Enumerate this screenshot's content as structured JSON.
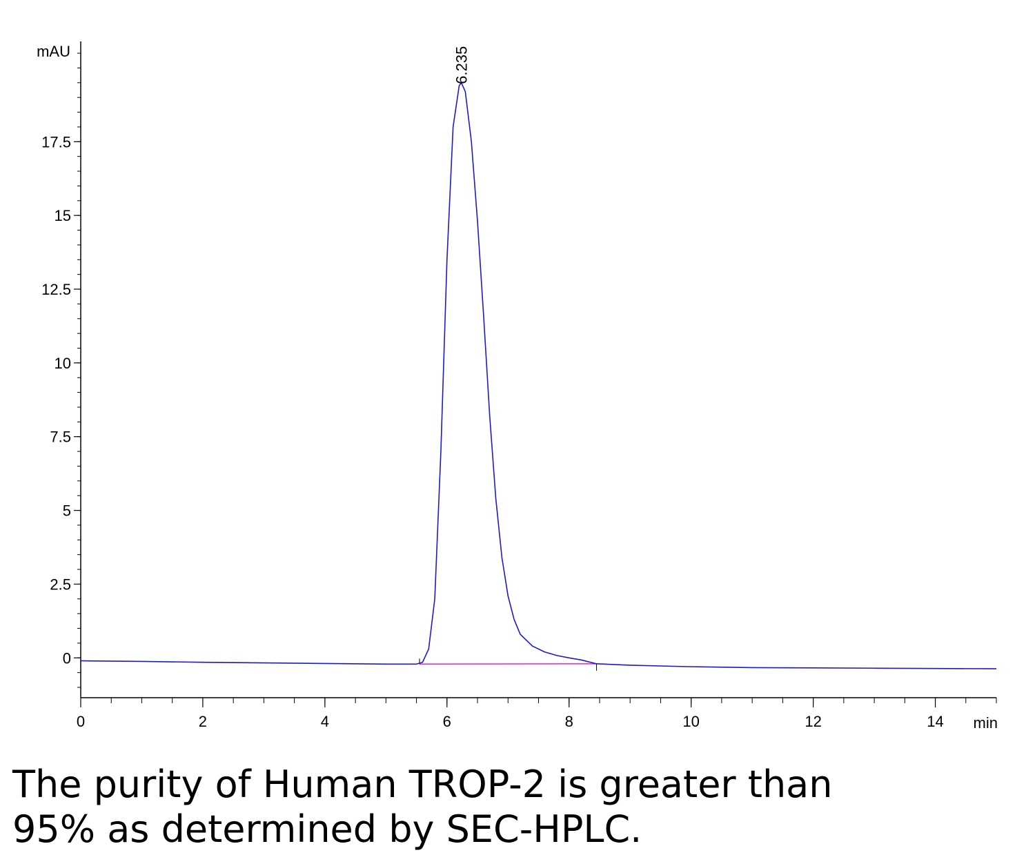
{
  "chart_data": {
    "type": "line",
    "title": "",
    "xlabel": "min",
    "ylabel": "mAU",
    "xlim": [
      0,
      15
    ],
    "ylim": [
      -1.35,
      20.9
    ],
    "x_ticks": [
      0,
      2,
      4,
      6,
      8,
      10,
      12,
      14
    ],
    "x_tick_labels": [
      "0",
      "2",
      "4",
      "6",
      "8",
      "10",
      "12",
      "14"
    ],
    "y_ticks": [
      0,
      2.5,
      5,
      7.5,
      10,
      12.5,
      15,
      17.5
    ],
    "y_tick_labels": [
      "0",
      "2.5",
      "5",
      "7.5",
      "10",
      "12.5",
      "15",
      "17.5"
    ],
    "grid": false,
    "colors": {
      "trace": "#1a1acc",
      "baseline": "#e020e0",
      "axis": "#000000"
    },
    "series": [
      {
        "x": [
          0,
          1,
          2,
          3,
          4,
          5,
          5.5,
          5.6,
          5.7,
          5.8,
          5.9,
          6.0,
          6.1,
          6.2,
          6.235,
          6.3,
          6.4,
          6.5,
          6.6,
          6.7,
          6.8,
          6.9,
          7.0,
          7.1,
          7.2,
          7.4,
          7.6,
          7.8,
          8.0,
          8.2,
          8.45,
          9,
          10,
          11,
          12,
          13,
          14,
          15
        ],
        "y": [
          -0.1,
          -0.12,
          -0.15,
          -0.17,
          -0.19,
          -0.21,
          -0.21,
          -0.15,
          0.3,
          2.0,
          7.0,
          13.5,
          18.0,
          19.4,
          19.5,
          19.2,
          17.5,
          14.8,
          11.6,
          8.2,
          5.4,
          3.4,
          2.1,
          1.3,
          0.8,
          0.4,
          0.2,
          0.08,
          0.0,
          -0.07,
          -0.2,
          -0.25,
          -0.3,
          -0.33,
          -0.34,
          -0.35,
          -0.36,
          -0.37
        ]
      }
    ],
    "peak_label": {
      "x": 6.235,
      "y": 19.5,
      "text": "6.235"
    },
    "integration_baseline": {
      "x": [
        5.55,
        8.45
      ],
      "y": [
        -0.21,
        -0.2
      ]
    }
  },
  "caption": {
    "line1": "The purity of Human TROP-2 is greater than",
    "line2": "95% as determined by SEC-HPLC."
  }
}
